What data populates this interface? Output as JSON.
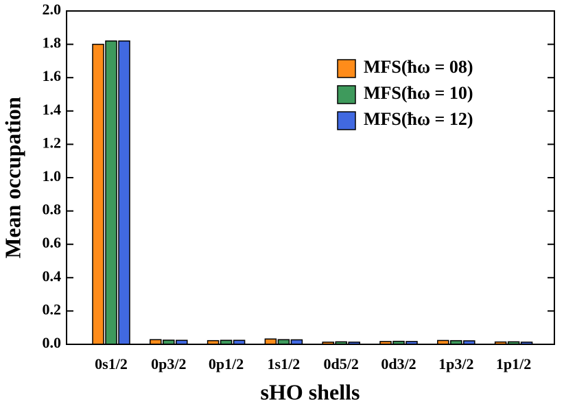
{
  "chart_data": {
    "type": "bar",
    "xlabel": "sHO shells",
    "ylabel": "Mean occupation",
    "categories": [
      "0s1/2",
      "0p3/2",
      "0p1/2",
      "1s1/2",
      "0d5/2",
      "0d3/2",
      "1p3/2",
      "1p1/2"
    ],
    "series": [
      {
        "name": "MFS(ħω = 08)",
        "color": "#ff8c1a",
        "values": [
          1.8,
          0.028,
          0.022,
          0.032,
          0.013,
          0.017,
          0.023,
          0.014
        ]
      },
      {
        "name": "MFS(ħω = 10)",
        "color": "#3e9a5c",
        "values": [
          1.82,
          0.025,
          0.024,
          0.028,
          0.015,
          0.018,
          0.022,
          0.015
        ]
      },
      {
        "name": "MFS(ħω = 12)",
        "color": "#4169e1",
        "values": [
          1.82,
          0.024,
          0.024,
          0.027,
          0.013,
          0.017,
          0.021,
          0.013
        ]
      }
    ],
    "ylim": [
      0,
      2.0
    ],
    "yticks": [
      {
        "value": 0,
        "label": "0.0"
      },
      0.2,
      0.4,
      0.6,
      0.8,
      {
        "value": 1,
        "label": "1.0"
      },
      1.2,
      1.4,
      1.6,
      1.8,
      {
        "value": 2,
        "label": "2.0"
      }
    ],
    "legend": "upper right"
  }
}
